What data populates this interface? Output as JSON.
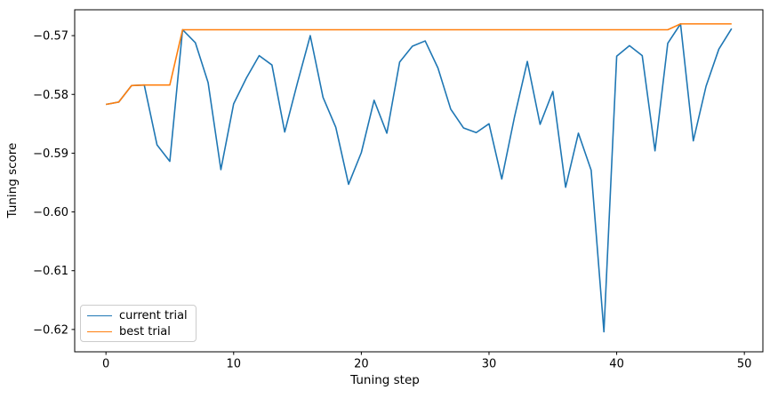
{
  "chart_data": {
    "type": "line",
    "title": "",
    "xlabel": "Tuning step",
    "ylabel": "Tuning score",
    "grid": false,
    "legend_position": "lower left",
    "x_ticks": [
      0,
      10,
      20,
      30,
      40,
      50
    ],
    "y_ticks": [
      -0.57,
      -0.58,
      -0.59,
      -0.6,
      -0.61,
      -0.62
    ],
    "xlim": [
      -2.45,
      51.45
    ],
    "ylim": [
      -0.6238,
      -0.5656
    ],
    "x": [
      0,
      1,
      2,
      3,
      4,
      5,
      6,
      7,
      8,
      9,
      10,
      11,
      12,
      13,
      14,
      15,
      16,
      17,
      18,
      19,
      20,
      21,
      22,
      23,
      24,
      25,
      26,
      27,
      28,
      29,
      30,
      31,
      32,
      33,
      34,
      35,
      36,
      37,
      38,
      39,
      40,
      41,
      42,
      43,
      44,
      45,
      46,
      47,
      48,
      49
    ],
    "series": [
      {
        "name": "current trial",
        "color": "#1f77b4",
        "values": [
          -0.5817,
          -0.5813,
          -0.5785,
          -0.5784,
          -0.5886,
          -0.5914,
          -0.569,
          -0.5712,
          -0.578,
          -0.5928,
          -0.5816,
          -0.5772,
          -0.5734,
          -0.575,
          -0.5864,
          -0.578,
          -0.57,
          -0.5805,
          -0.5856,
          -0.5953,
          -0.5899,
          -0.581,
          -0.5866,
          -0.5745,
          -0.5718,
          -0.5709,
          -0.5755,
          -0.5825,
          -0.5857,
          -0.5865,
          -0.585,
          -0.5944,
          -0.5838,
          -0.5744,
          -0.5851,
          -0.5795,
          -0.5958,
          -0.5866,
          -0.5929,
          -0.6204,
          -0.5735,
          -0.5717,
          -0.5734,
          -0.5896,
          -0.5713,
          -0.568,
          -0.5879,
          -0.5786,
          -0.5723,
          -0.5688
        ]
      },
      {
        "name": "best trial",
        "color": "#ff7f0e",
        "values": [
          -0.5817,
          -0.5813,
          -0.5785,
          -0.5784,
          -0.5784,
          -0.5784,
          -0.569,
          -0.569,
          -0.569,
          -0.569,
          -0.569,
          -0.569,
          -0.569,
          -0.569,
          -0.569,
          -0.569,
          -0.569,
          -0.569,
          -0.569,
          -0.569,
          -0.569,
          -0.569,
          -0.569,
          -0.569,
          -0.569,
          -0.569,
          -0.569,
          -0.569,
          -0.569,
          -0.569,
          -0.569,
          -0.569,
          -0.569,
          -0.569,
          -0.569,
          -0.569,
          -0.569,
          -0.569,
          -0.569,
          -0.569,
          -0.569,
          -0.569,
          -0.569,
          -0.569,
          -0.569,
          -0.568,
          -0.568,
          -0.568,
          -0.568,
          -0.568
        ]
      }
    ]
  }
}
